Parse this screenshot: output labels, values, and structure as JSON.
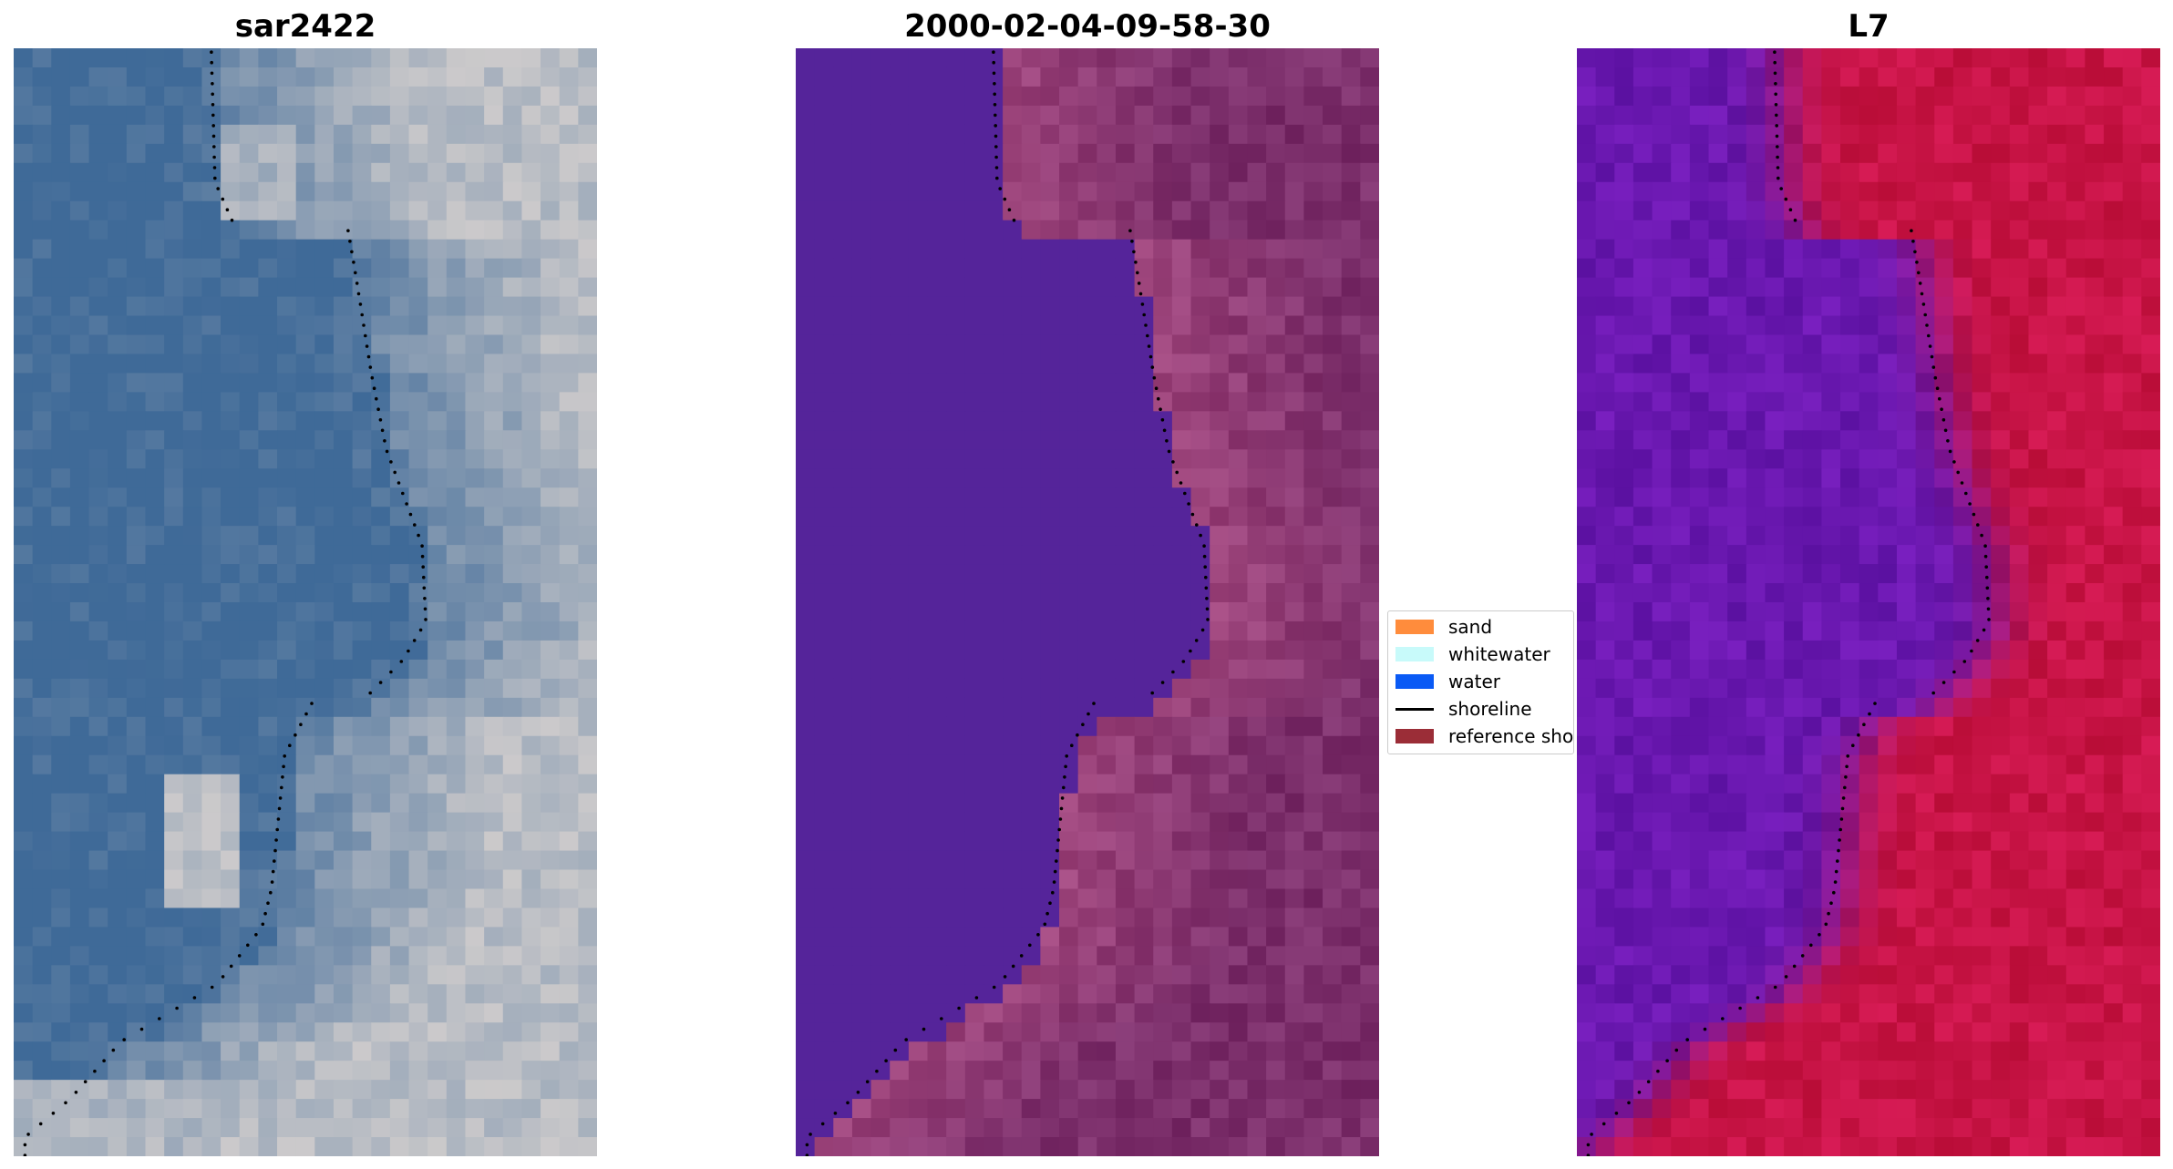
{
  "panels": [
    {
      "title": "sar2422",
      "kind": "rgb-image"
    },
    {
      "title": "2000-02-04-09-58-30",
      "kind": "classification"
    },
    {
      "title": "L7",
      "kind": "water-index"
    }
  ],
  "legend": {
    "items": [
      {
        "label": "sand",
        "type": "patch",
        "color": "#ff8c3c"
      },
      {
        "label": "whitewater",
        "type": "patch",
        "color": "#c8fafa"
      },
      {
        "label": "water",
        "type": "patch",
        "color": "#0a5af5"
      },
      {
        "label": "shoreline",
        "type": "line",
        "color": "#000000"
      },
      {
        "label": "reference shoreline",
        "type": "patch",
        "color": "#9b2d37"
      }
    ]
  },
  "colors": {
    "rgb_water": "#3f6a98",
    "rgb_land": "#b9bdc4",
    "class_water": "#55249a",
    "class_land": "#7c2f6b",
    "index_water": "#6a18b0",
    "index_land": "#c81446",
    "shoreline_dots": "#000000"
  }
}
